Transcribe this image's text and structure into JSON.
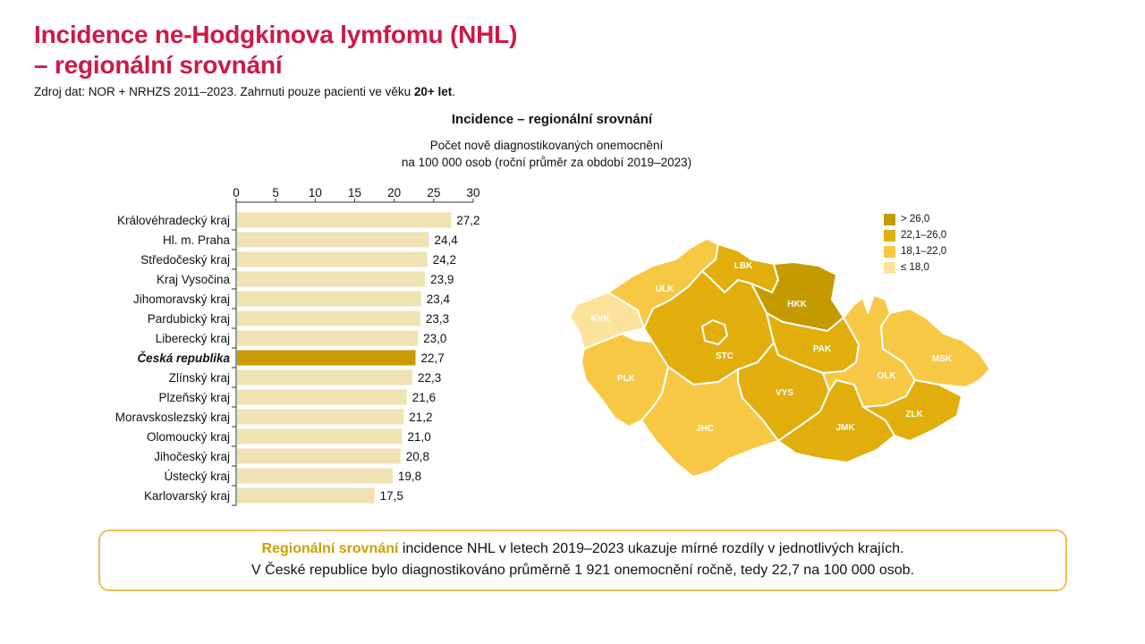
{
  "title_line1": "Incidence ne-Hodgkinova lymfomu (NHL)",
  "title_line2": "– regionální srovnání",
  "source_prefix": "Zdroj dat: NOR + NRHZS 2011–2023. Zahrnuti pouze pacienti ve věku ",
  "source_bold": "20+ let",
  "source_suffix": ".",
  "chart_data": [
    {
      "type": "bar",
      "orientation": "horizontal",
      "title": "Incidence – regionální srovnání",
      "subtitle_line1": "Počet nově diagnostikovaných onemocnění",
      "subtitle_line2": "na 100 000 osob (roční průměr za období 2019–2023)",
      "xlim": [
        0,
        30
      ],
      "ticks": [
        "0",
        "5",
        "10",
        "15",
        "20",
        "25",
        "30"
      ],
      "tick_values": [
        0,
        5,
        10,
        15,
        20,
        25,
        30
      ],
      "categories": [
        "Královéhradecký kraj",
        "Hl. m. Praha",
        "Středočeský kraj",
        "Kraj Vysočina",
        "Jihomoravský kraj",
        "Pardubický kraj",
        "Liberecký kraj",
        "Česká republika",
        "Zlínský kraj",
        "Plzeňský kraj",
        "Moravskoslezský kraj",
        "Olomoucký kraj",
        "Jihočeský kraj",
        "Ústecký kraj",
        "Karlovarský kraj"
      ],
      "values": [
        27.2,
        24.4,
        24.2,
        23.9,
        23.4,
        23.3,
        23.0,
        22.7,
        22.3,
        21.6,
        21.2,
        21.0,
        20.8,
        19.8,
        17.5
      ],
      "value_labels": [
        "27,2",
        "24,4",
        "24,2",
        "23,9",
        "23,4",
        "23,3",
        "23,0",
        "22,7",
        "22,3",
        "21,6",
        "21,2",
        "21,0",
        "20,8",
        "19,8",
        "17,5"
      ],
      "highlight_index": 7,
      "colors": {
        "bar": "#efe2b3",
        "highlight": "#c89b00",
        "axis": "#333333"
      }
    },
    {
      "type": "choropleth",
      "regions": [
        {
          "code": "KVK",
          "value": 17.5
        },
        {
          "code": "ULK",
          "value": 19.8
        },
        {
          "code": "LBK",
          "value": 23.0
        },
        {
          "code": "HKK",
          "value": 27.2
        },
        {
          "code": "PLK",
          "value": 21.6
        },
        {
          "code": "STC",
          "value": 24.2
        },
        {
          "code": "PAK",
          "value": 23.3
        },
        {
          "code": "VYS",
          "value": 23.9
        },
        {
          "code": "JHC",
          "value": 20.8
        },
        {
          "code": "JMK",
          "value": 23.4
        },
        {
          "code": "OLK",
          "value": 21.0
        },
        {
          "code": "MSK",
          "value": 21.2
        },
        {
          "code": "ZLK",
          "value": 22.3
        },
        {
          "code": "PHA",
          "value": 24.4
        }
      ],
      "legend": [
        {
          "label": "> 26,0",
          "color": "#c49a00"
        },
        {
          "label": "22,1–26,0",
          "color": "#e2ae0c"
        },
        {
          "label": "18,1–22,0",
          "color": "#f7c844"
        },
        {
          "label": "≤ 18,0",
          "color": "#fbe39b"
        }
      ]
    }
  ],
  "note": {
    "highlight": "Regionální srovnání",
    "line1_rest": " incidence NHL v letech 2019–2023 ukazuje mírné rozdíly v jednotlivých krajích.",
    "line2": "V České republice bylo diagnostikováno průměrně 1 921 onemocnění ročně, tedy 22,7 na 100 000 osob."
  }
}
